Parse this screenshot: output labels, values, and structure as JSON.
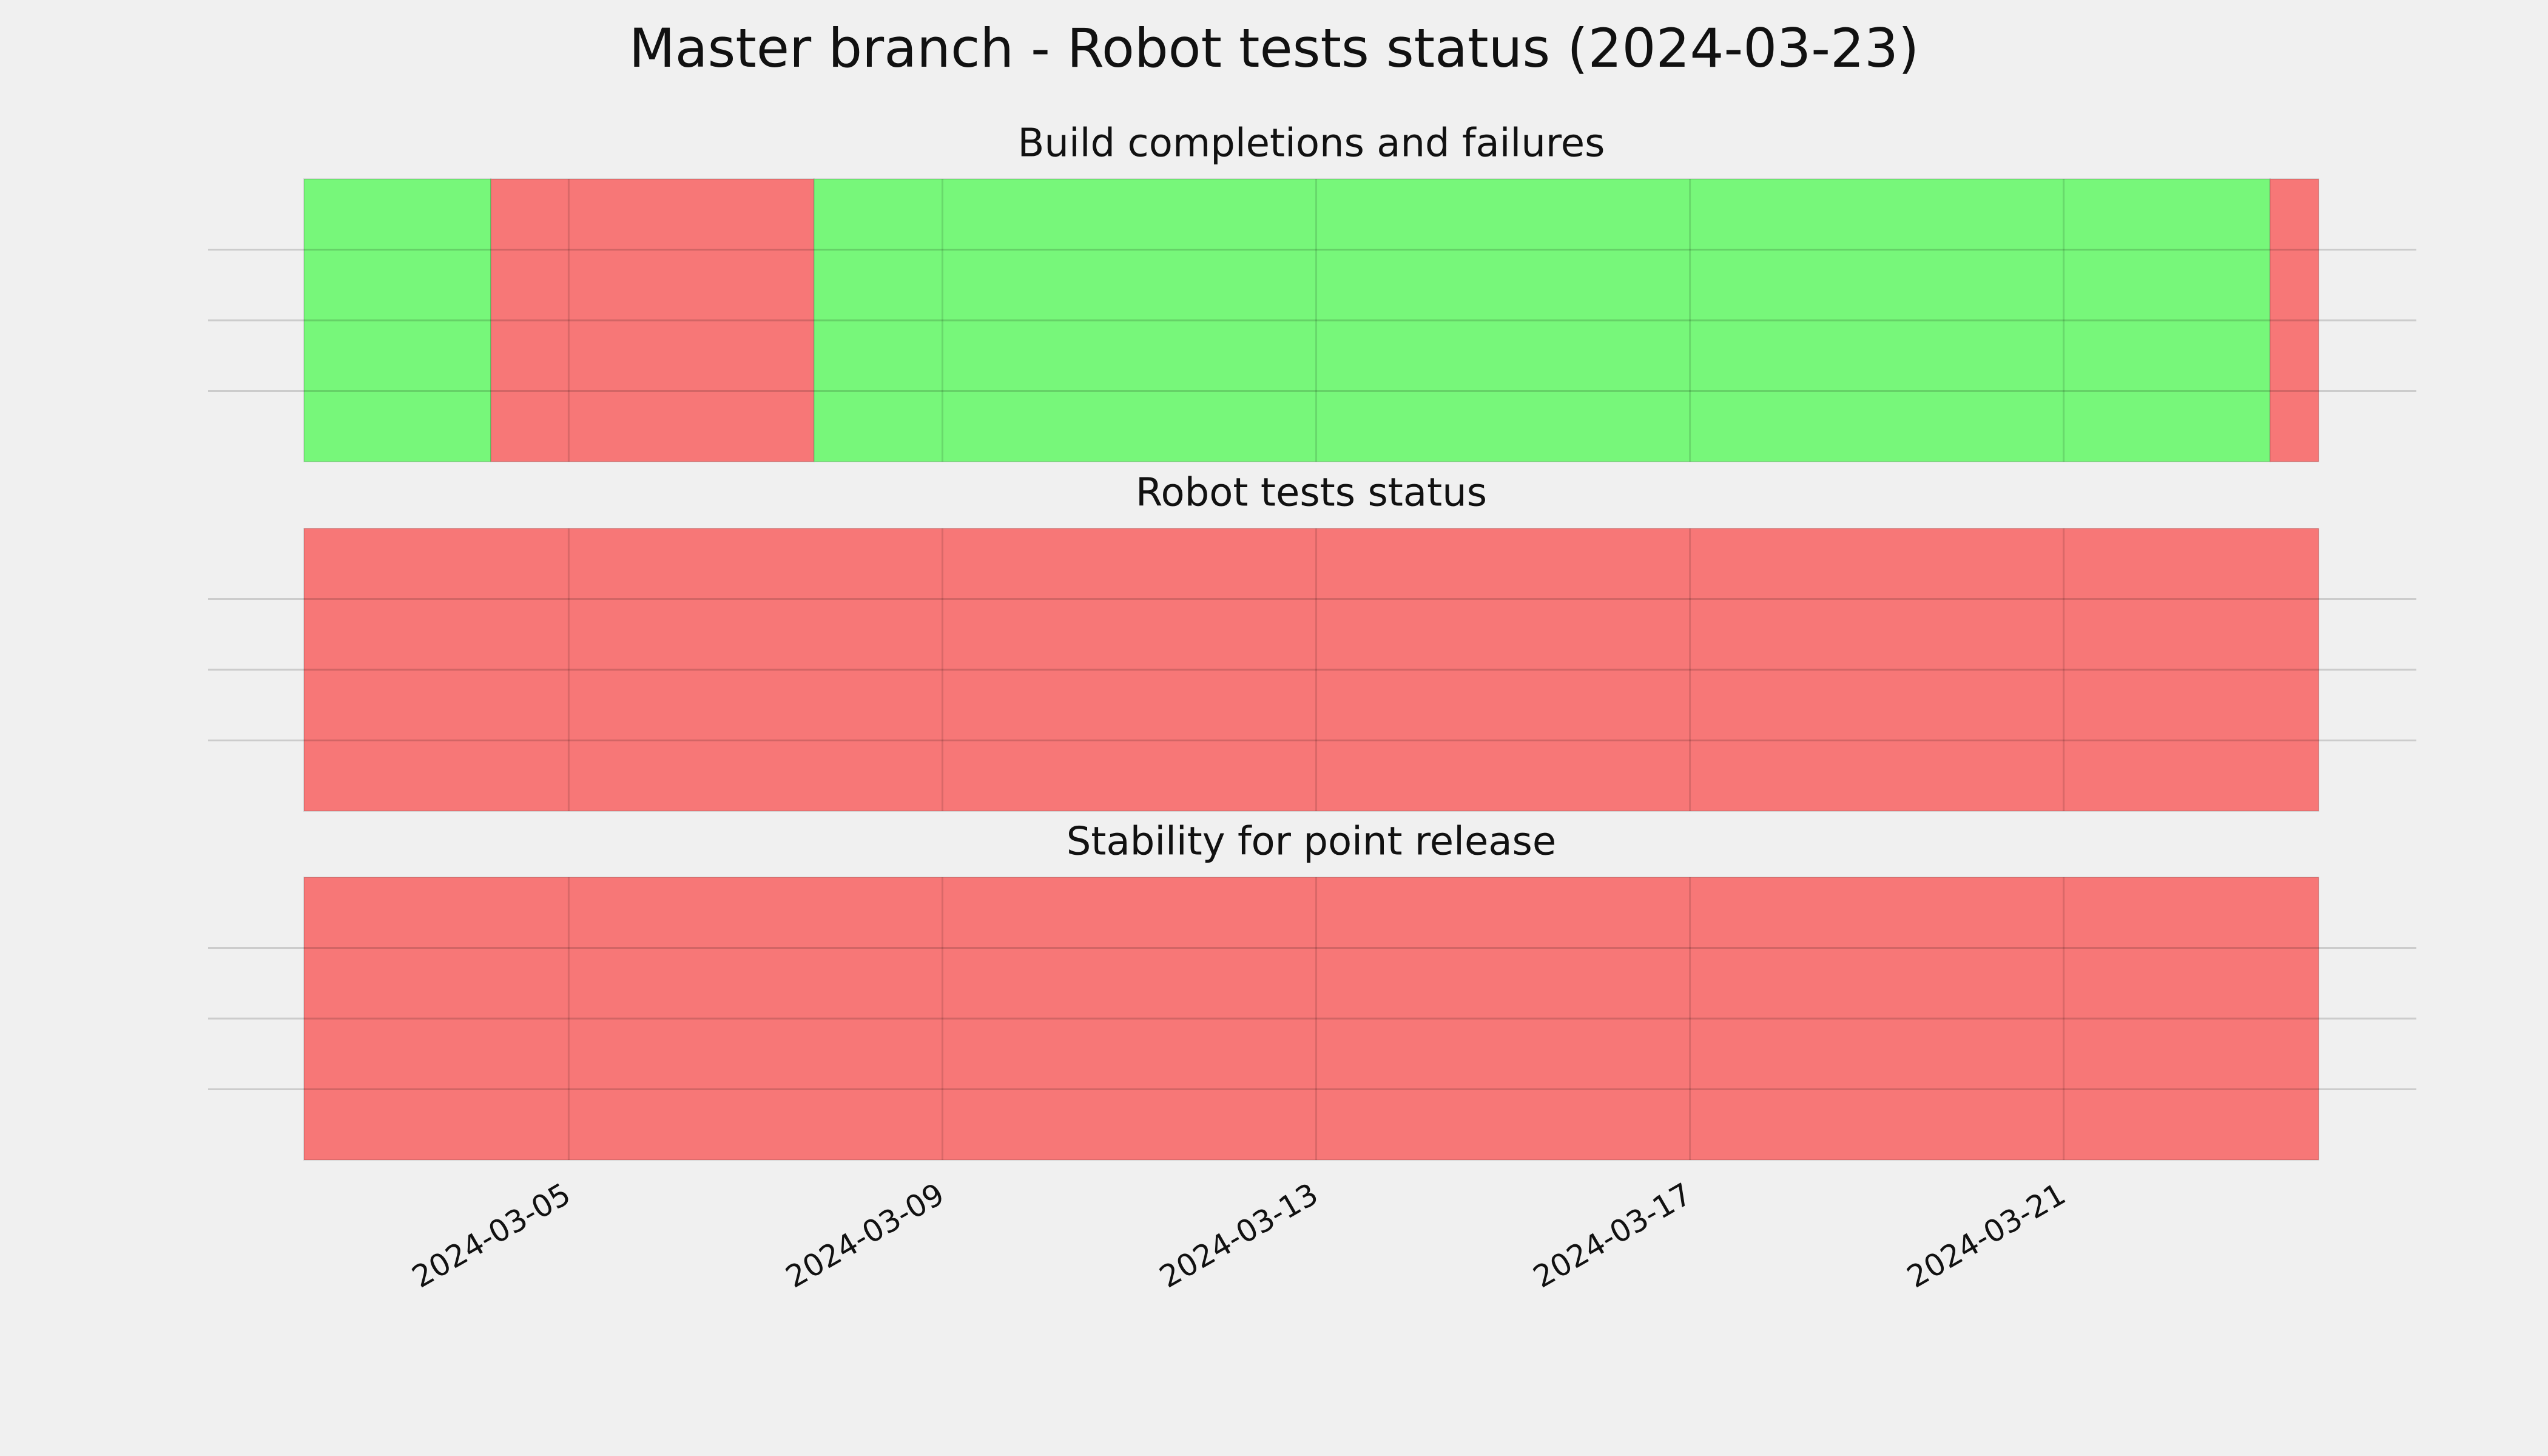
{
  "title": "Master branch - Robot tests status (2024-03-23)",
  "chart_data": [
    {
      "type": "timeline",
      "title": "Build completions and failures",
      "xlim": [
        "2024-03-02T04:00",
        "2024-03-23T17:30"
      ],
      "xticks": [
        "2024-03-05",
        "2024-03-09",
        "2024-03-13",
        "2024-03-17",
        "2024-03-21"
      ],
      "ylim": [
        0,
        1
      ],
      "yticks": [
        0.25,
        0.5,
        0.75
      ],
      "grid": true,
      "segments": [
        {
          "start": "2024-03-02T04:00",
          "end": "2024-03-04T04:00",
          "color": "#77f77a"
        },
        {
          "start": "2024-03-04T04:00",
          "end": "2024-03-07T15:00",
          "color": "#f77777"
        },
        {
          "start": "2024-03-07T15:00",
          "end": "2024-03-23T05:00",
          "color": "#77f77a"
        },
        {
          "start": "2024-03-23T05:00",
          "end": "2024-03-23T17:30",
          "color": "#f77777"
        }
      ]
    },
    {
      "type": "timeline",
      "title": "Robot tests status",
      "xlim": [
        "2024-03-02T04:00",
        "2024-03-23T17:30"
      ],
      "xticks": [
        "2024-03-05",
        "2024-03-09",
        "2024-03-13",
        "2024-03-17",
        "2024-03-21"
      ],
      "ylim": [
        0,
        1
      ],
      "yticks": [
        0.25,
        0.5,
        0.75
      ],
      "grid": true,
      "segments": [
        {
          "start": "2024-03-02T04:00",
          "end": "2024-03-23T17:30",
          "color": "#f77777"
        }
      ]
    },
    {
      "type": "timeline",
      "title": "Stability for point release",
      "xlim": [
        "2024-03-02T04:00",
        "2024-03-23T17:30"
      ],
      "xticks": [
        "2024-03-05",
        "2024-03-09",
        "2024-03-13",
        "2024-03-17",
        "2024-03-21"
      ],
      "ylim": [
        0,
        1
      ],
      "yticks": [
        0.25,
        0.5,
        0.75
      ],
      "grid": true,
      "segments": [
        {
          "start": "2024-03-02T04:00",
          "end": "2024-03-23T17:30",
          "color": "#f77777"
        }
      ]
    }
  ]
}
